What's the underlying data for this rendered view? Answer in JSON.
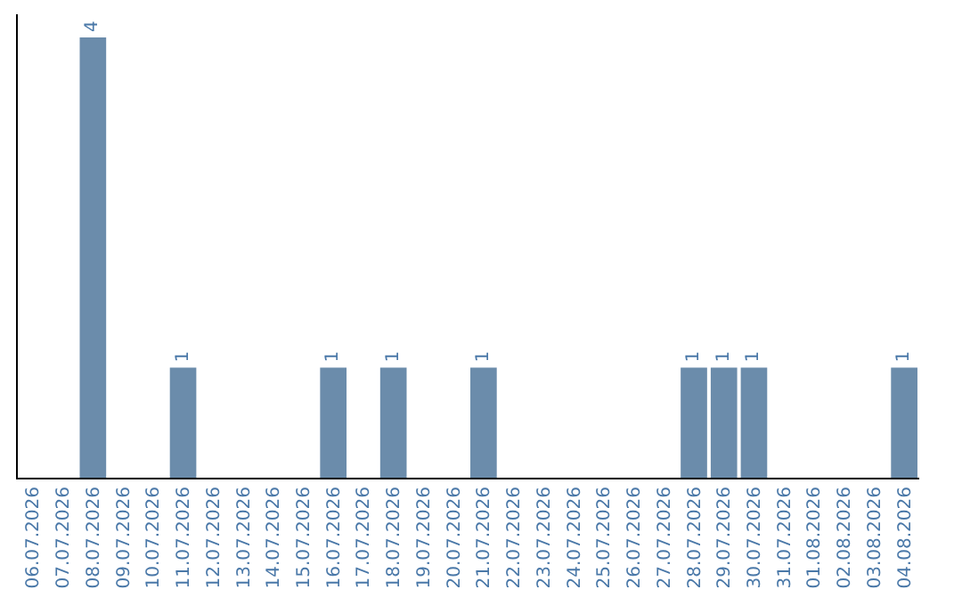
{
  "chart_data": {
    "type": "bar",
    "categories": [
      "06.07.2026",
      "07.07.2026",
      "08.07.2026",
      "09.07.2026",
      "10.07.2026",
      "11.07.2026",
      "12.07.2026",
      "13.07.2026",
      "14.07.2026",
      "15.07.2026",
      "16.07.2026",
      "17.07.2026",
      "18.07.2026",
      "19.07.2026",
      "20.07.2026",
      "21.07.2026",
      "22.07.2026",
      "23.07.2026",
      "24.07.2026",
      "25.07.2026",
      "26.07.2026",
      "27.07.2026",
      "28.07.2026",
      "29.07.2026",
      "30.07.2026",
      "31.07.2026",
      "01.08.2026",
      "02.08.2026",
      "03.08.2026",
      "04.08.2026"
    ],
    "values": [
      0,
      0,
      4,
      0,
      0,
      1,
      0,
      0,
      0,
      0,
      1,
      0,
      1,
      0,
      0,
      1,
      0,
      0,
      0,
      0,
      0,
      0,
      1,
      1,
      1,
      0,
      0,
      0,
      0,
      1
    ],
    "value_labels": [
      null,
      null,
      "4",
      null,
      null,
      "1",
      null,
      null,
      null,
      null,
      "1",
      null,
      "1",
      null,
      null,
      "1",
      null,
      null,
      null,
      null,
      null,
      null,
      "1",
      "1",
      "1",
      null,
      null,
      null,
      null,
      "1"
    ],
    "color": "#6b8cab",
    "tick_labels": "x"
  }
}
